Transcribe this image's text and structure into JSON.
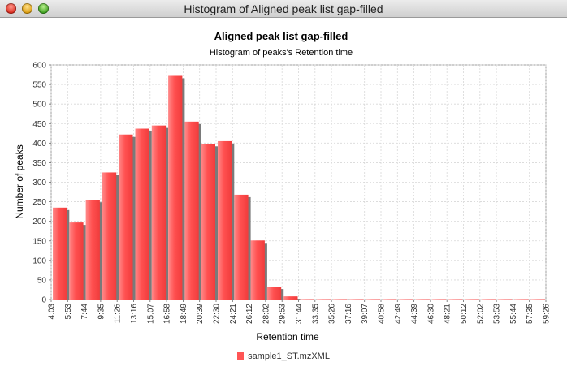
{
  "window": {
    "title": "Histogram of Aligned peak list gap-filled"
  },
  "chart_data": {
    "type": "bar",
    "title": "Aligned peak list gap-filled",
    "subtitle": "Histogram of peaks's Retention time",
    "xlabel": "Retention time",
    "ylabel": "Number of peaks",
    "ylim": [
      0,
      600
    ],
    "yticks": [
      "0",
      "50",
      "100",
      "150",
      "200",
      "250",
      "300",
      "350",
      "400",
      "450",
      "500",
      "550",
      "600"
    ],
    "xticks": [
      "4:03",
      "5:53",
      "7:44",
      "9:35",
      "11:26",
      "13:16",
      "15:07",
      "16:58",
      "18:49",
      "20:39",
      "22:30",
      "24:21",
      "26:12",
      "28:02",
      "29:53",
      "31:44",
      "33:35",
      "35:26",
      "37:16",
      "39:07",
      "40:58",
      "42:49",
      "44:39",
      "46:30",
      "48:21",
      "50:12",
      "52:02",
      "53:53",
      "55:44",
      "57:35",
      "59:26"
    ],
    "series": [
      {
        "name": "sample1_ST.mzXML",
        "color": "#ff5555",
        "values": [
          235,
          197,
          255,
          325,
          422,
          437,
          445,
          572,
          455,
          398,
          405,
          268,
          151,
          33,
          8,
          1,
          1,
          1,
          1,
          1,
          1,
          1,
          1,
          1,
          1,
          1,
          1,
          1,
          1,
          1
        ]
      }
    ],
    "grid": true,
    "legend": "bottom-center"
  }
}
